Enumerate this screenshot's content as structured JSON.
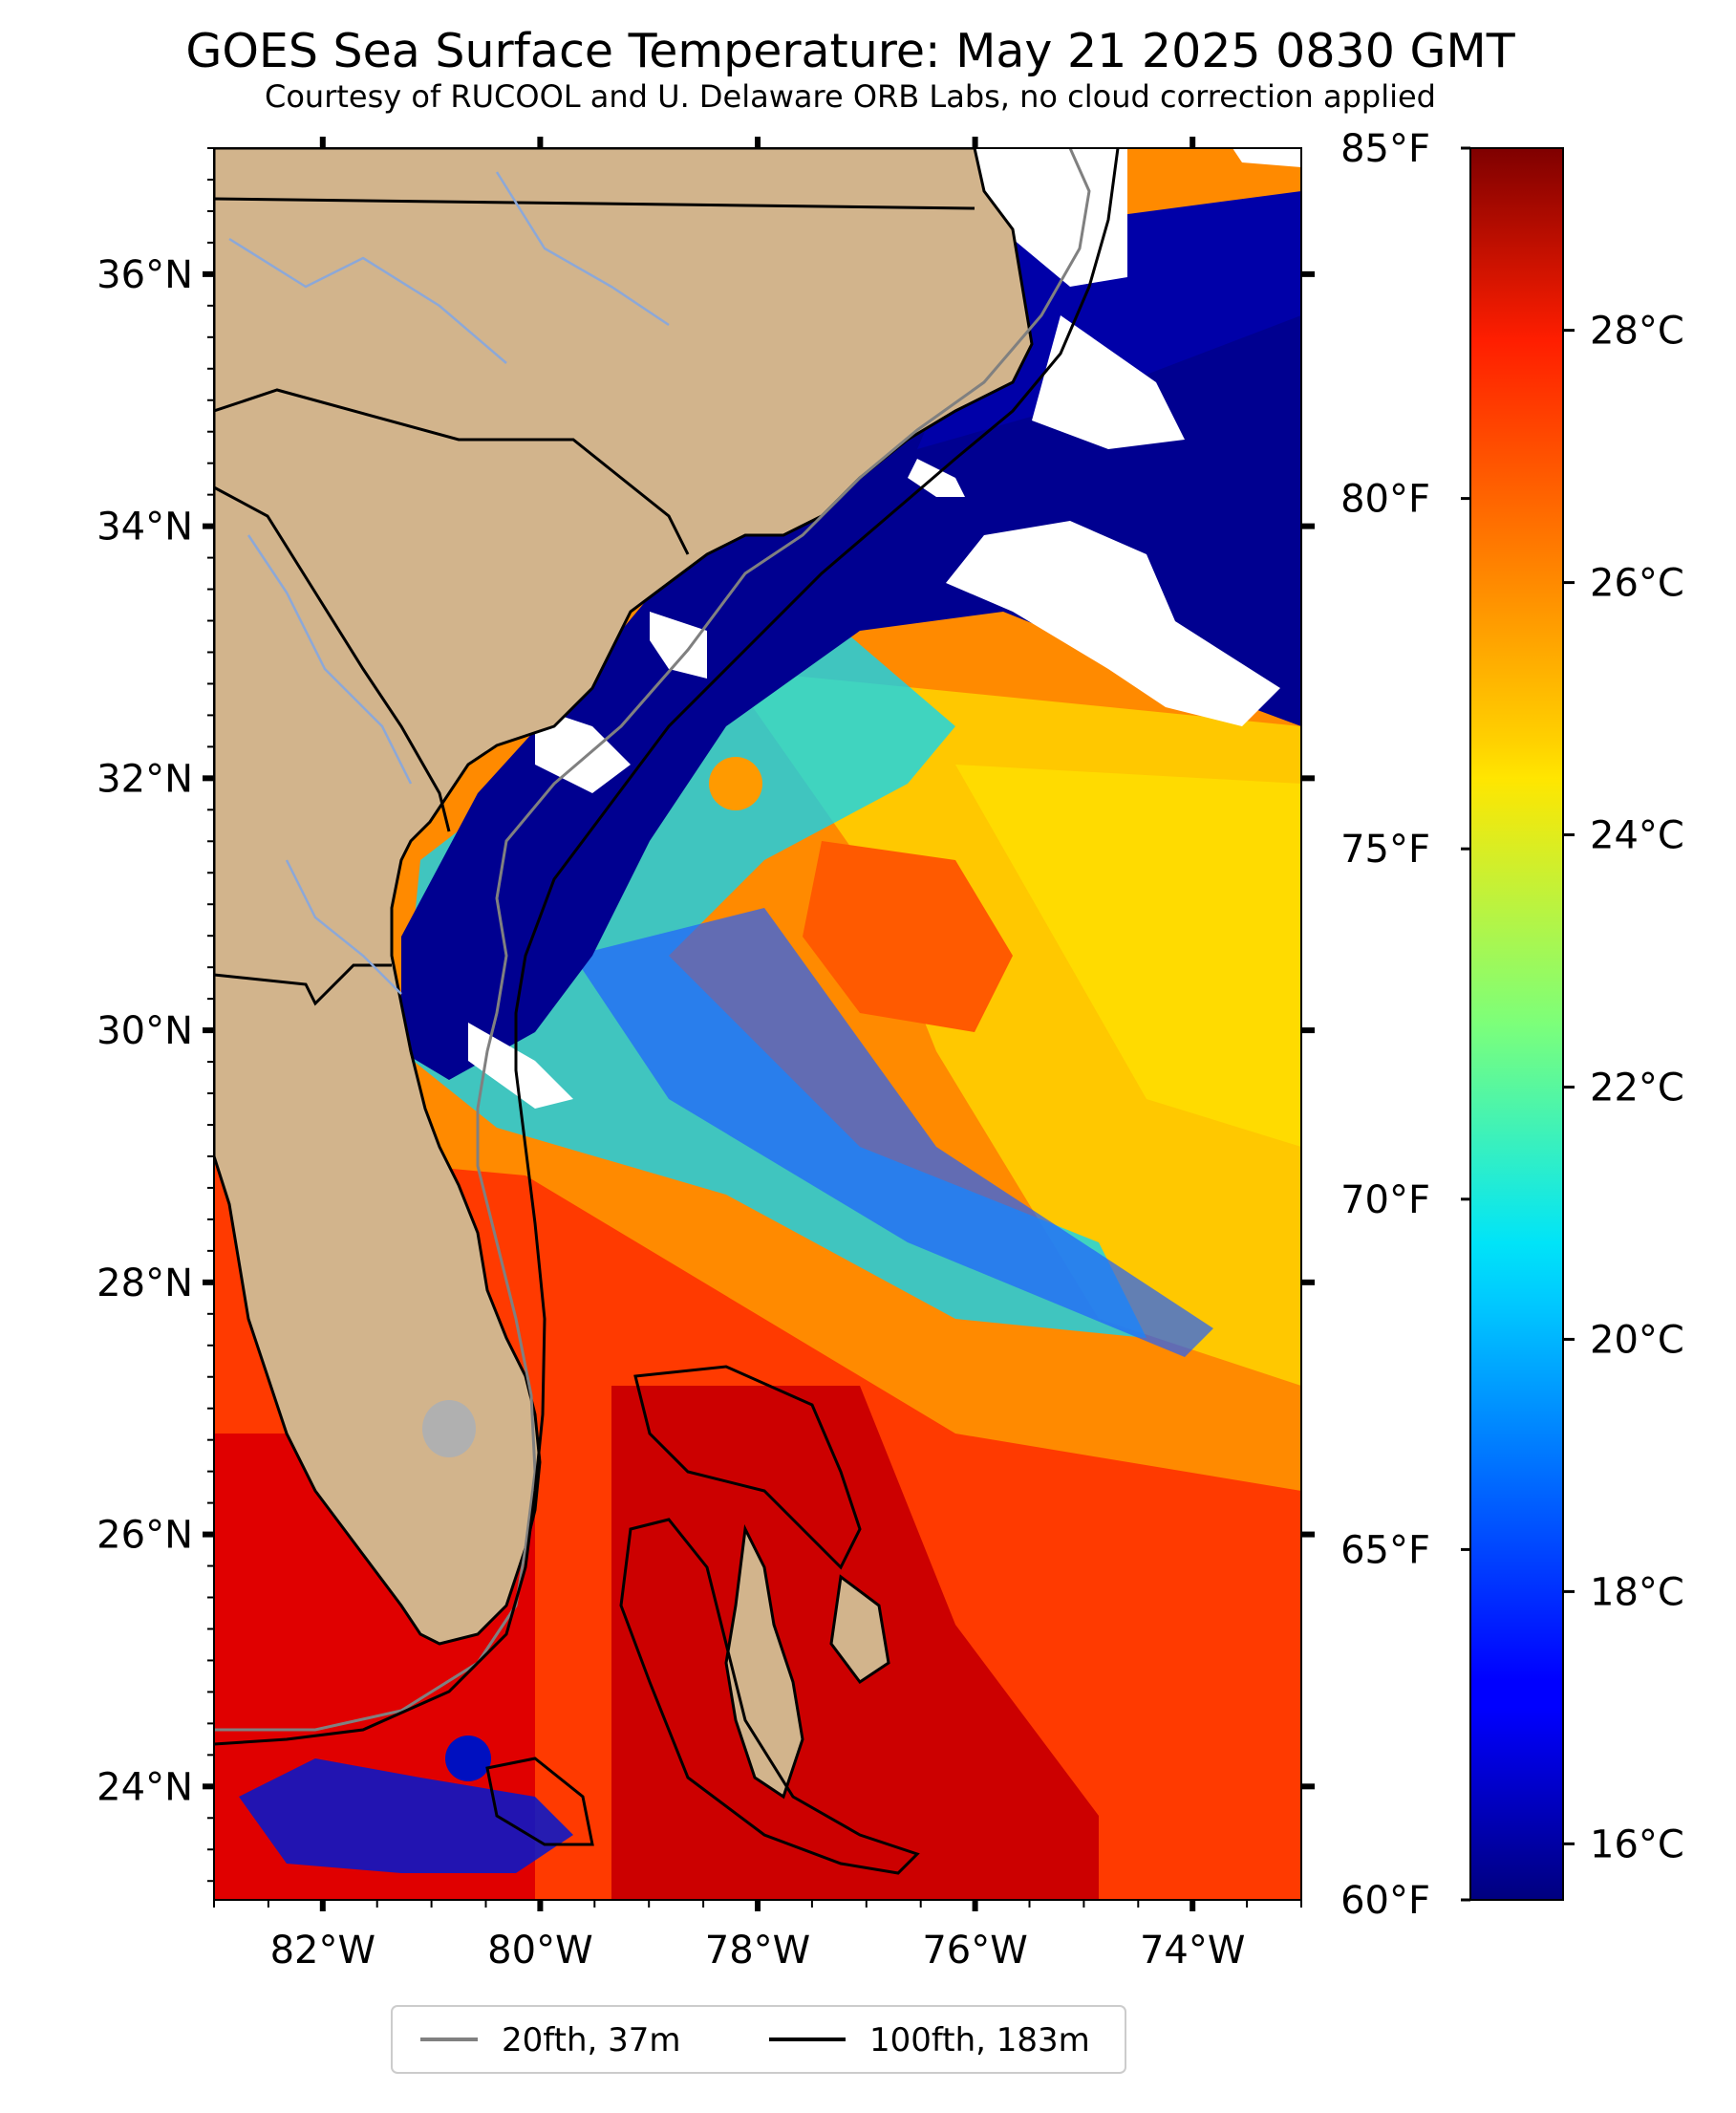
{
  "title": "GOES Sea Surface Temperature: May 21 2025 0830 GMT",
  "subtitle": "Courtesy of RUCOOL and U. Delaware ORB Labs, no cloud correction applied",
  "map": {
    "latitude_labels": [
      "36°N",
      "34°N",
      "32°N",
      "30°N",
      "28°N",
      "26°N",
      "24°N"
    ],
    "longitude_labels": [
      "82°W",
      "80°W",
      "78°W",
      "76°W",
      "74°W"
    ],
    "lat_range": [
      23.1,
      37.0
    ],
    "lon_range": [
      -83.0,
      -73.0
    ],
    "land_color": "#d2b48c",
    "cloud_color": "#ffffff"
  },
  "colorbar": {
    "colormap": "jet",
    "celsius_labels": [
      "28°C",
      "26°C",
      "24°C",
      "22°C",
      "20°C",
      "18°C",
      "16°C"
    ],
    "fahrenheit_labels": [
      "85°F",
      "80°F",
      "75°F",
      "70°F",
      "65°F",
      "60°F"
    ],
    "range_f": [
      60,
      85
    ]
  },
  "legend": {
    "items": [
      {
        "label": "20fth, 37m",
        "color": "#808080"
      },
      {
        "label": "100fth, 183m",
        "color": "#000000"
      }
    ]
  }
}
